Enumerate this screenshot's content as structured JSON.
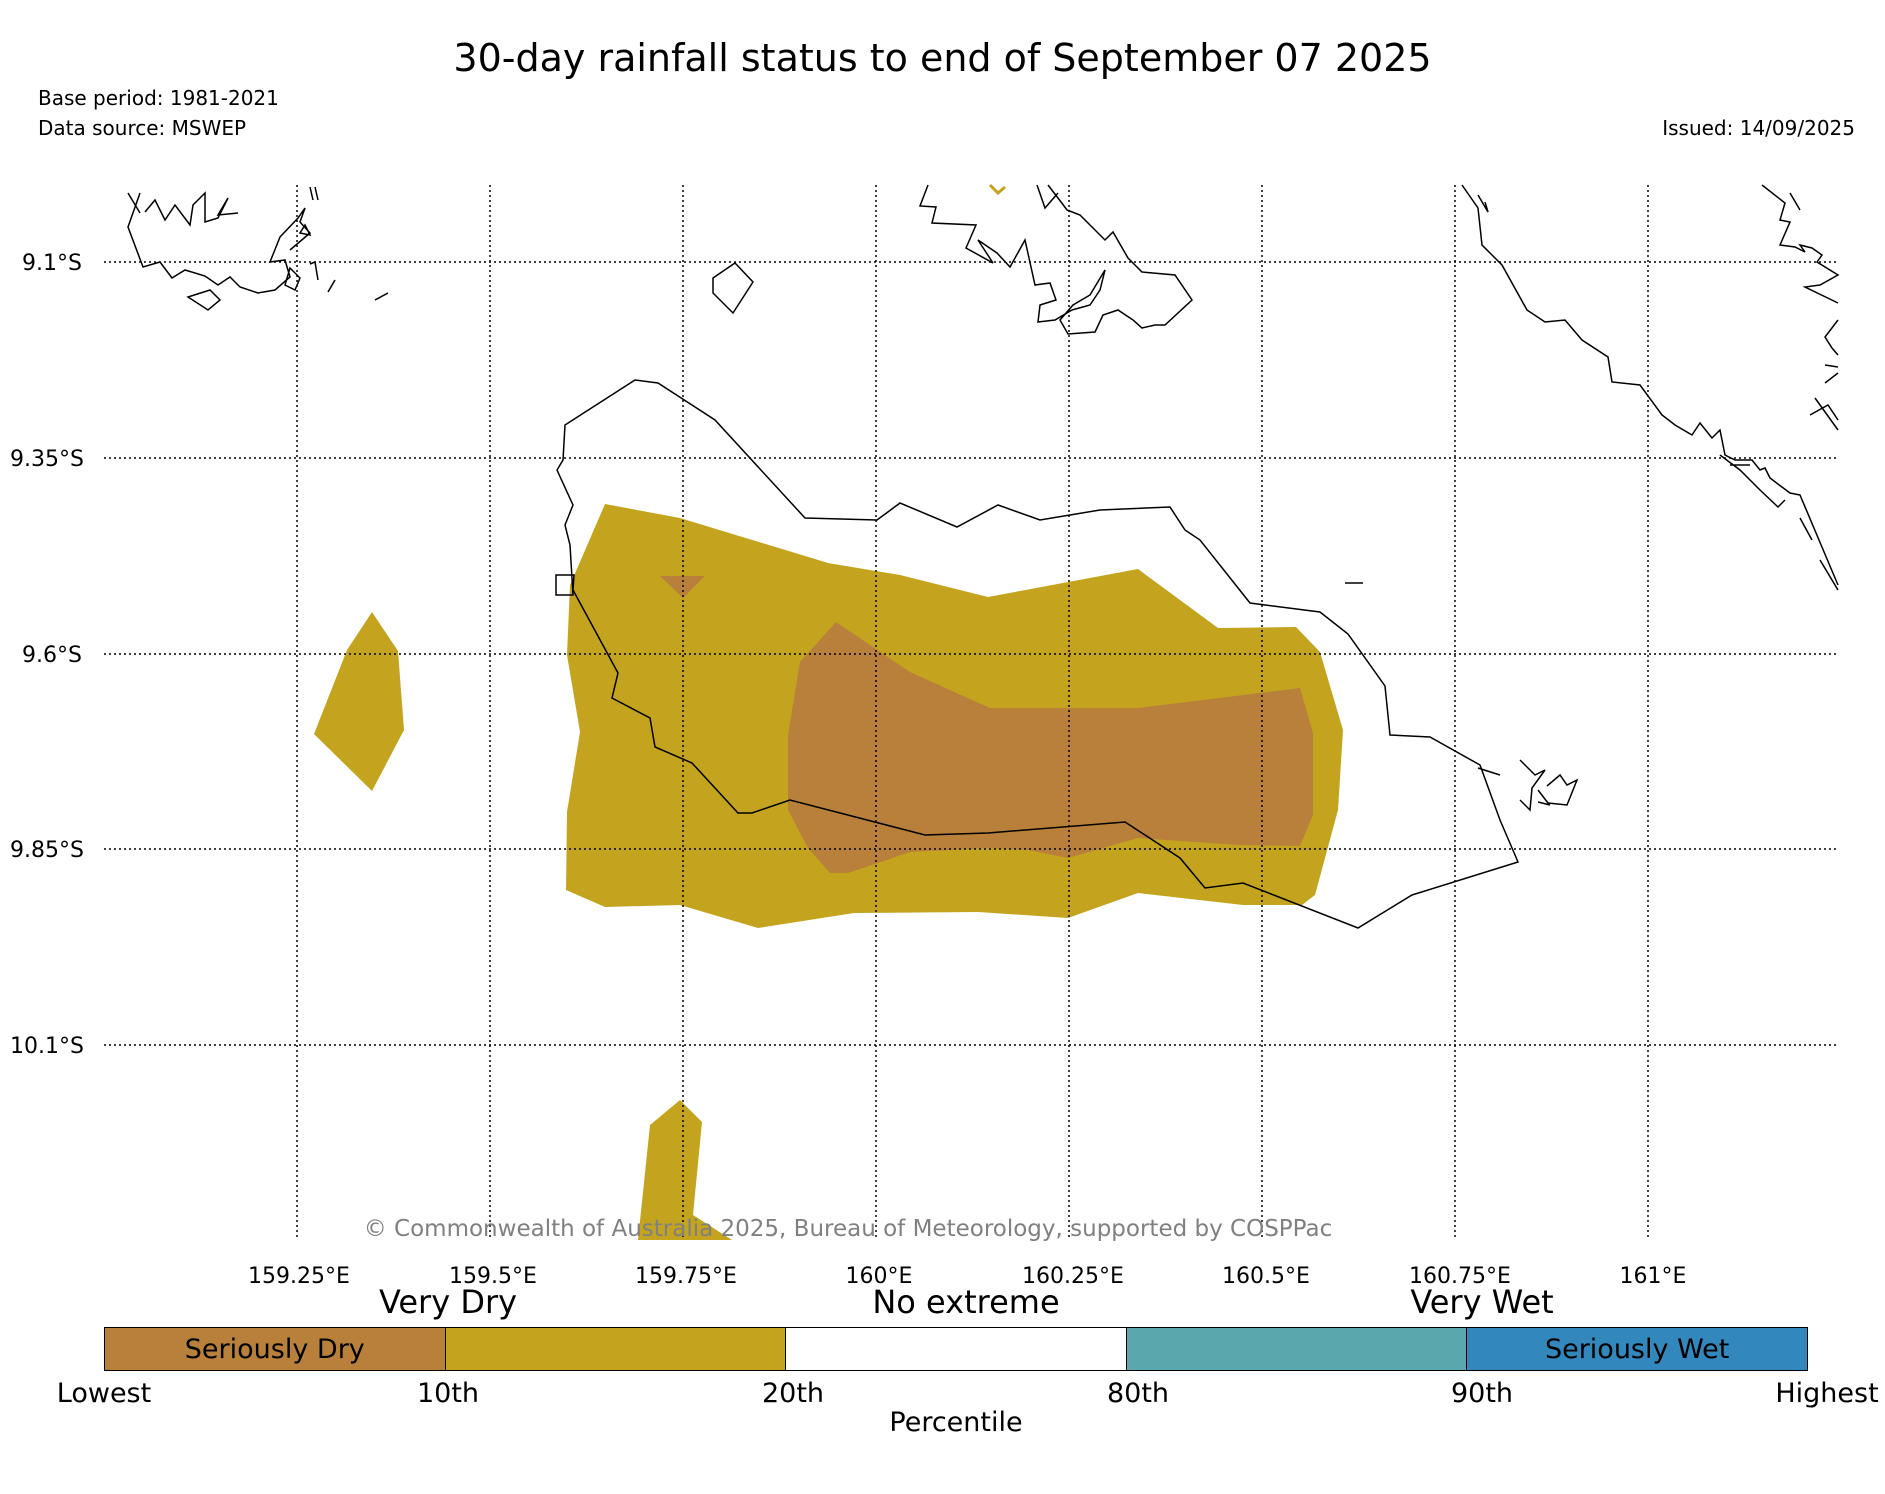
{
  "title": "30-day rainfall status to end of September 07 2025",
  "base_period": "Base period: 1981-2021",
  "data_source": "Data source: MSWEP",
  "issued": "Issued: 14/09/2025",
  "copyright": "© Commonwealth of Australia 2025, Bureau of Meteorology, supported by COSPPac",
  "lat_labels": [
    "9.1°S",
    "9.35°S",
    "9.6°S",
    "9.85°S",
    "10.1°S"
  ],
  "lon_labels": [
    "159.25°E",
    "159.5°E",
    "159.75°E",
    "160°E",
    "160.25°E",
    "160.5°E",
    "160.75°E",
    "161°E"
  ],
  "colors": {
    "seriously_dry": "#b8803a",
    "very_dry": "#c4a41e",
    "no_extreme": "#ffffff",
    "very_wet": "#5aa8ad",
    "seriously_wet": "#3287bc"
  },
  "legend": {
    "headings": [
      "Very Dry",
      "No extreme",
      "Very Wet"
    ],
    "segments": [
      "Seriously Dry",
      "",
      "",
      "",
      "Seriously Wet"
    ],
    "percentiles": [
      "Lowest",
      "10th",
      "20th",
      "80th",
      "90th",
      "Highest"
    ],
    "axis_title": "Percentile"
  }
}
